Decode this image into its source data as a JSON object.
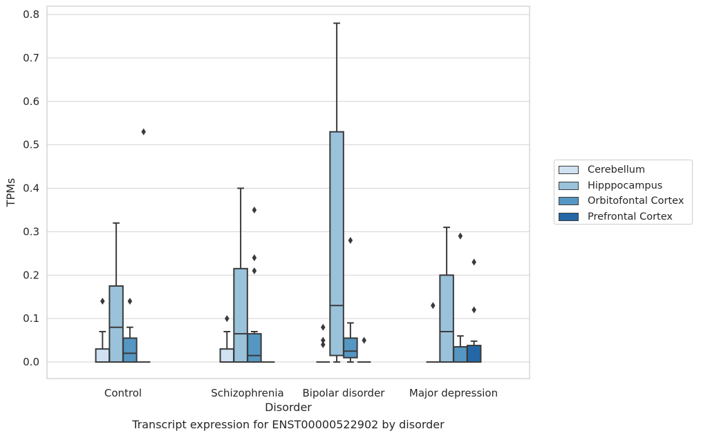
{
  "chart_data": {
    "type": "box",
    "title": "",
    "caption": "Transcript expression for ENST00000522902 by disorder",
    "xlabel": "Disorder",
    "ylabel": "TPMs",
    "ylim": [
      -0.038,
      0.82
    ],
    "yticks": [
      "0.0",
      "0.1",
      "0.2",
      "0.3",
      "0.4",
      "0.5",
      "0.6",
      "0.7",
      "0.8"
    ],
    "grid": true,
    "legend_position": "right",
    "categories": [
      "Control",
      "Schizophrenia",
      "Bipolar disorder",
      "Major depression"
    ],
    "series": [
      {
        "name": "Cerebellum",
        "color": "#d0e1f2",
        "boxes": [
          {
            "whisker_low": 0,
            "q1": 0,
            "median": 0,
            "q3": 0.03,
            "whisker_high": 0.07,
            "outliers": [
              0.14
            ]
          },
          {
            "whisker_low": 0,
            "q1": 0,
            "median": 0,
            "q3": 0.03,
            "whisker_high": 0.07,
            "outliers": [
              0.1
            ]
          },
          {
            "whisker_low": 0,
            "q1": 0,
            "median": 0,
            "q3": 0,
            "whisker_high": 0,
            "outliers": [
              0.04,
              0.05,
              0.08
            ]
          },
          {
            "whisker_low": 0,
            "q1": 0,
            "median": 0,
            "q3": 0,
            "whisker_high": 0,
            "outliers": [
              0.13
            ]
          }
        ]
      },
      {
        "name": "Hipppocampus",
        "color": "#9ac2db",
        "boxes": [
          {
            "whisker_low": 0,
            "q1": 0,
            "median": 0.08,
            "q3": 0.175,
            "whisker_high": 0.32,
            "outliers": []
          },
          {
            "whisker_low": 0,
            "q1": 0,
            "median": 0.065,
            "q3": 0.215,
            "whisker_high": 0.4,
            "outliers": []
          },
          {
            "whisker_low": 0,
            "q1": 0.015,
            "median": 0.13,
            "q3": 0.53,
            "whisker_high": 0.78,
            "outliers": []
          },
          {
            "whisker_low": 0,
            "q1": 0,
            "median": 0.07,
            "q3": 0.2,
            "whisker_high": 0.31,
            "outliers": []
          }
        ]
      },
      {
        "name": "Orbitofontal Cortex",
        "color": "#5596c3",
        "boxes": [
          {
            "whisker_low": 0,
            "q1": 0,
            "median": 0.02,
            "q3": 0.055,
            "whisker_high": 0.08,
            "outliers": [
              0.14
            ]
          },
          {
            "whisker_low": 0,
            "q1": 0,
            "median": 0.015,
            "q3": 0.065,
            "whisker_high": 0.07,
            "outliers": [
              0.21,
              0.24,
              0.35
            ]
          },
          {
            "whisker_low": 0,
            "q1": 0.01,
            "median": 0.025,
            "q3": 0.055,
            "whisker_high": 0.09,
            "outliers": [
              0.28
            ]
          },
          {
            "whisker_low": 0,
            "q1": 0,
            "median": 0,
            "q3": 0.035,
            "whisker_high": 0.06,
            "outliers": [
              0.29
            ]
          }
        ]
      },
      {
        "name": "Prefrontal Cortex",
        "color": "#2467a6",
        "boxes": [
          {
            "whisker_low": 0,
            "q1": 0,
            "median": 0,
            "q3": 0,
            "whisker_high": 0,
            "outliers": [
              0.53
            ]
          },
          {
            "whisker_low": 0,
            "q1": 0,
            "median": 0,
            "q3": 0,
            "whisker_high": 0,
            "outliers": []
          },
          {
            "whisker_low": 0,
            "q1": 0,
            "median": 0,
            "q3": 0,
            "whisker_high": 0,
            "outliers": [
              0.05
            ]
          },
          {
            "whisker_low": 0,
            "q1": 0,
            "median": 0,
            "q3": 0.038,
            "whisker_high": 0.048,
            "outliers": [
              0.12,
              0.23
            ]
          }
        ]
      }
    ]
  }
}
